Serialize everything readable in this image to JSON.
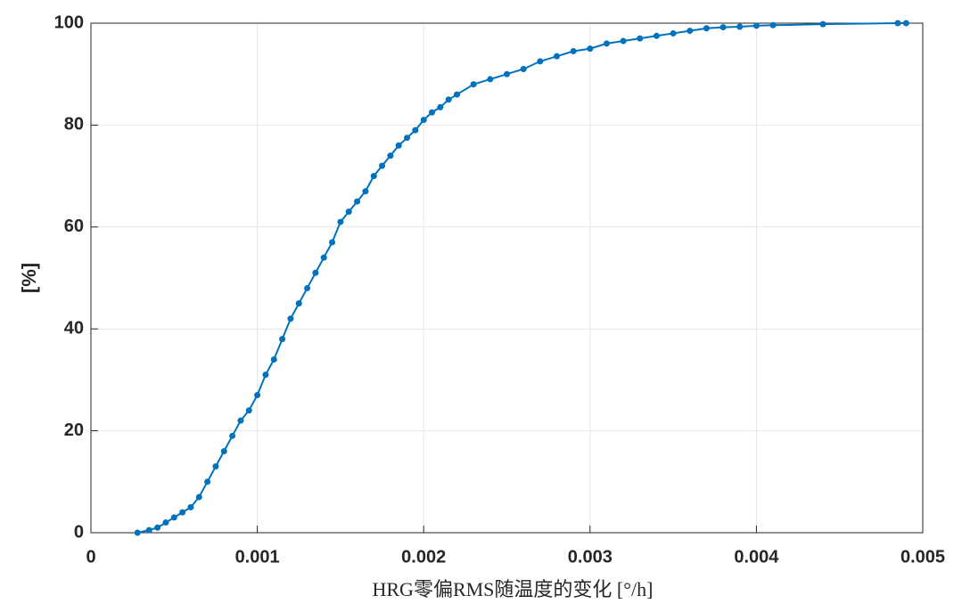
{
  "chart_data": {
    "type": "line",
    "x_label": "HRG零偏RMS随温度的变化 [°/h]",
    "y_label": "[%]",
    "x": [
      0.00028,
      0.00035,
      0.0004,
      0.00045,
      0.0005,
      0.00055,
      0.0006,
      0.00065,
      0.0007,
      0.00075,
      0.0008,
      0.00085,
      0.0009,
      0.00095,
      0.001,
      0.00105,
      0.0011,
      0.00115,
      0.0012,
      0.00125,
      0.0013,
      0.00135,
      0.0014,
      0.00145,
      0.0015,
      0.00155,
      0.0016,
      0.00165,
      0.0017,
      0.00175,
      0.0018,
      0.00185,
      0.0019,
      0.00195,
      0.002,
      0.00205,
      0.0021,
      0.00215,
      0.0022,
      0.0023,
      0.0024,
      0.0025,
      0.0026,
      0.0027,
      0.0028,
      0.0029,
      0.003,
      0.0031,
      0.0032,
      0.0033,
      0.0034,
      0.0035,
      0.0036,
      0.0037,
      0.0038,
      0.0039,
      0.004,
      0.0041,
      0.0044,
      0.00485,
      0.0049
    ],
    "series": [
      {
        "color": "#0072bd",
        "values": [
          0,
          0.5,
          1,
          2,
          3,
          4,
          5,
          7,
          10,
          13,
          16,
          19,
          22,
          24,
          27,
          31,
          34,
          38,
          42,
          45,
          48,
          51,
          54,
          57,
          61,
          63,
          65,
          67,
          70,
          72,
          74,
          76,
          77.5,
          79,
          81,
          82.5,
          83.5,
          85,
          86,
          88,
          89,
          90,
          91,
          92.5,
          93.5,
          94.5,
          95,
          96,
          96.5,
          97,
          97.5,
          98,
          98.5,
          99,
          99.2,
          99.3,
          99.5,
          99.6,
          99.8,
          100,
          100
        ]
      }
    ],
    "xlim": [
      0,
      0.005
    ],
    "xticks": [
      0,
      0.001,
      0.002,
      0.003,
      0.004,
      0.005
    ],
    "ylim": [
      0,
      100
    ],
    "yticks": [
      0,
      20,
      40,
      60,
      80,
      100
    ],
    "grid": true
  }
}
